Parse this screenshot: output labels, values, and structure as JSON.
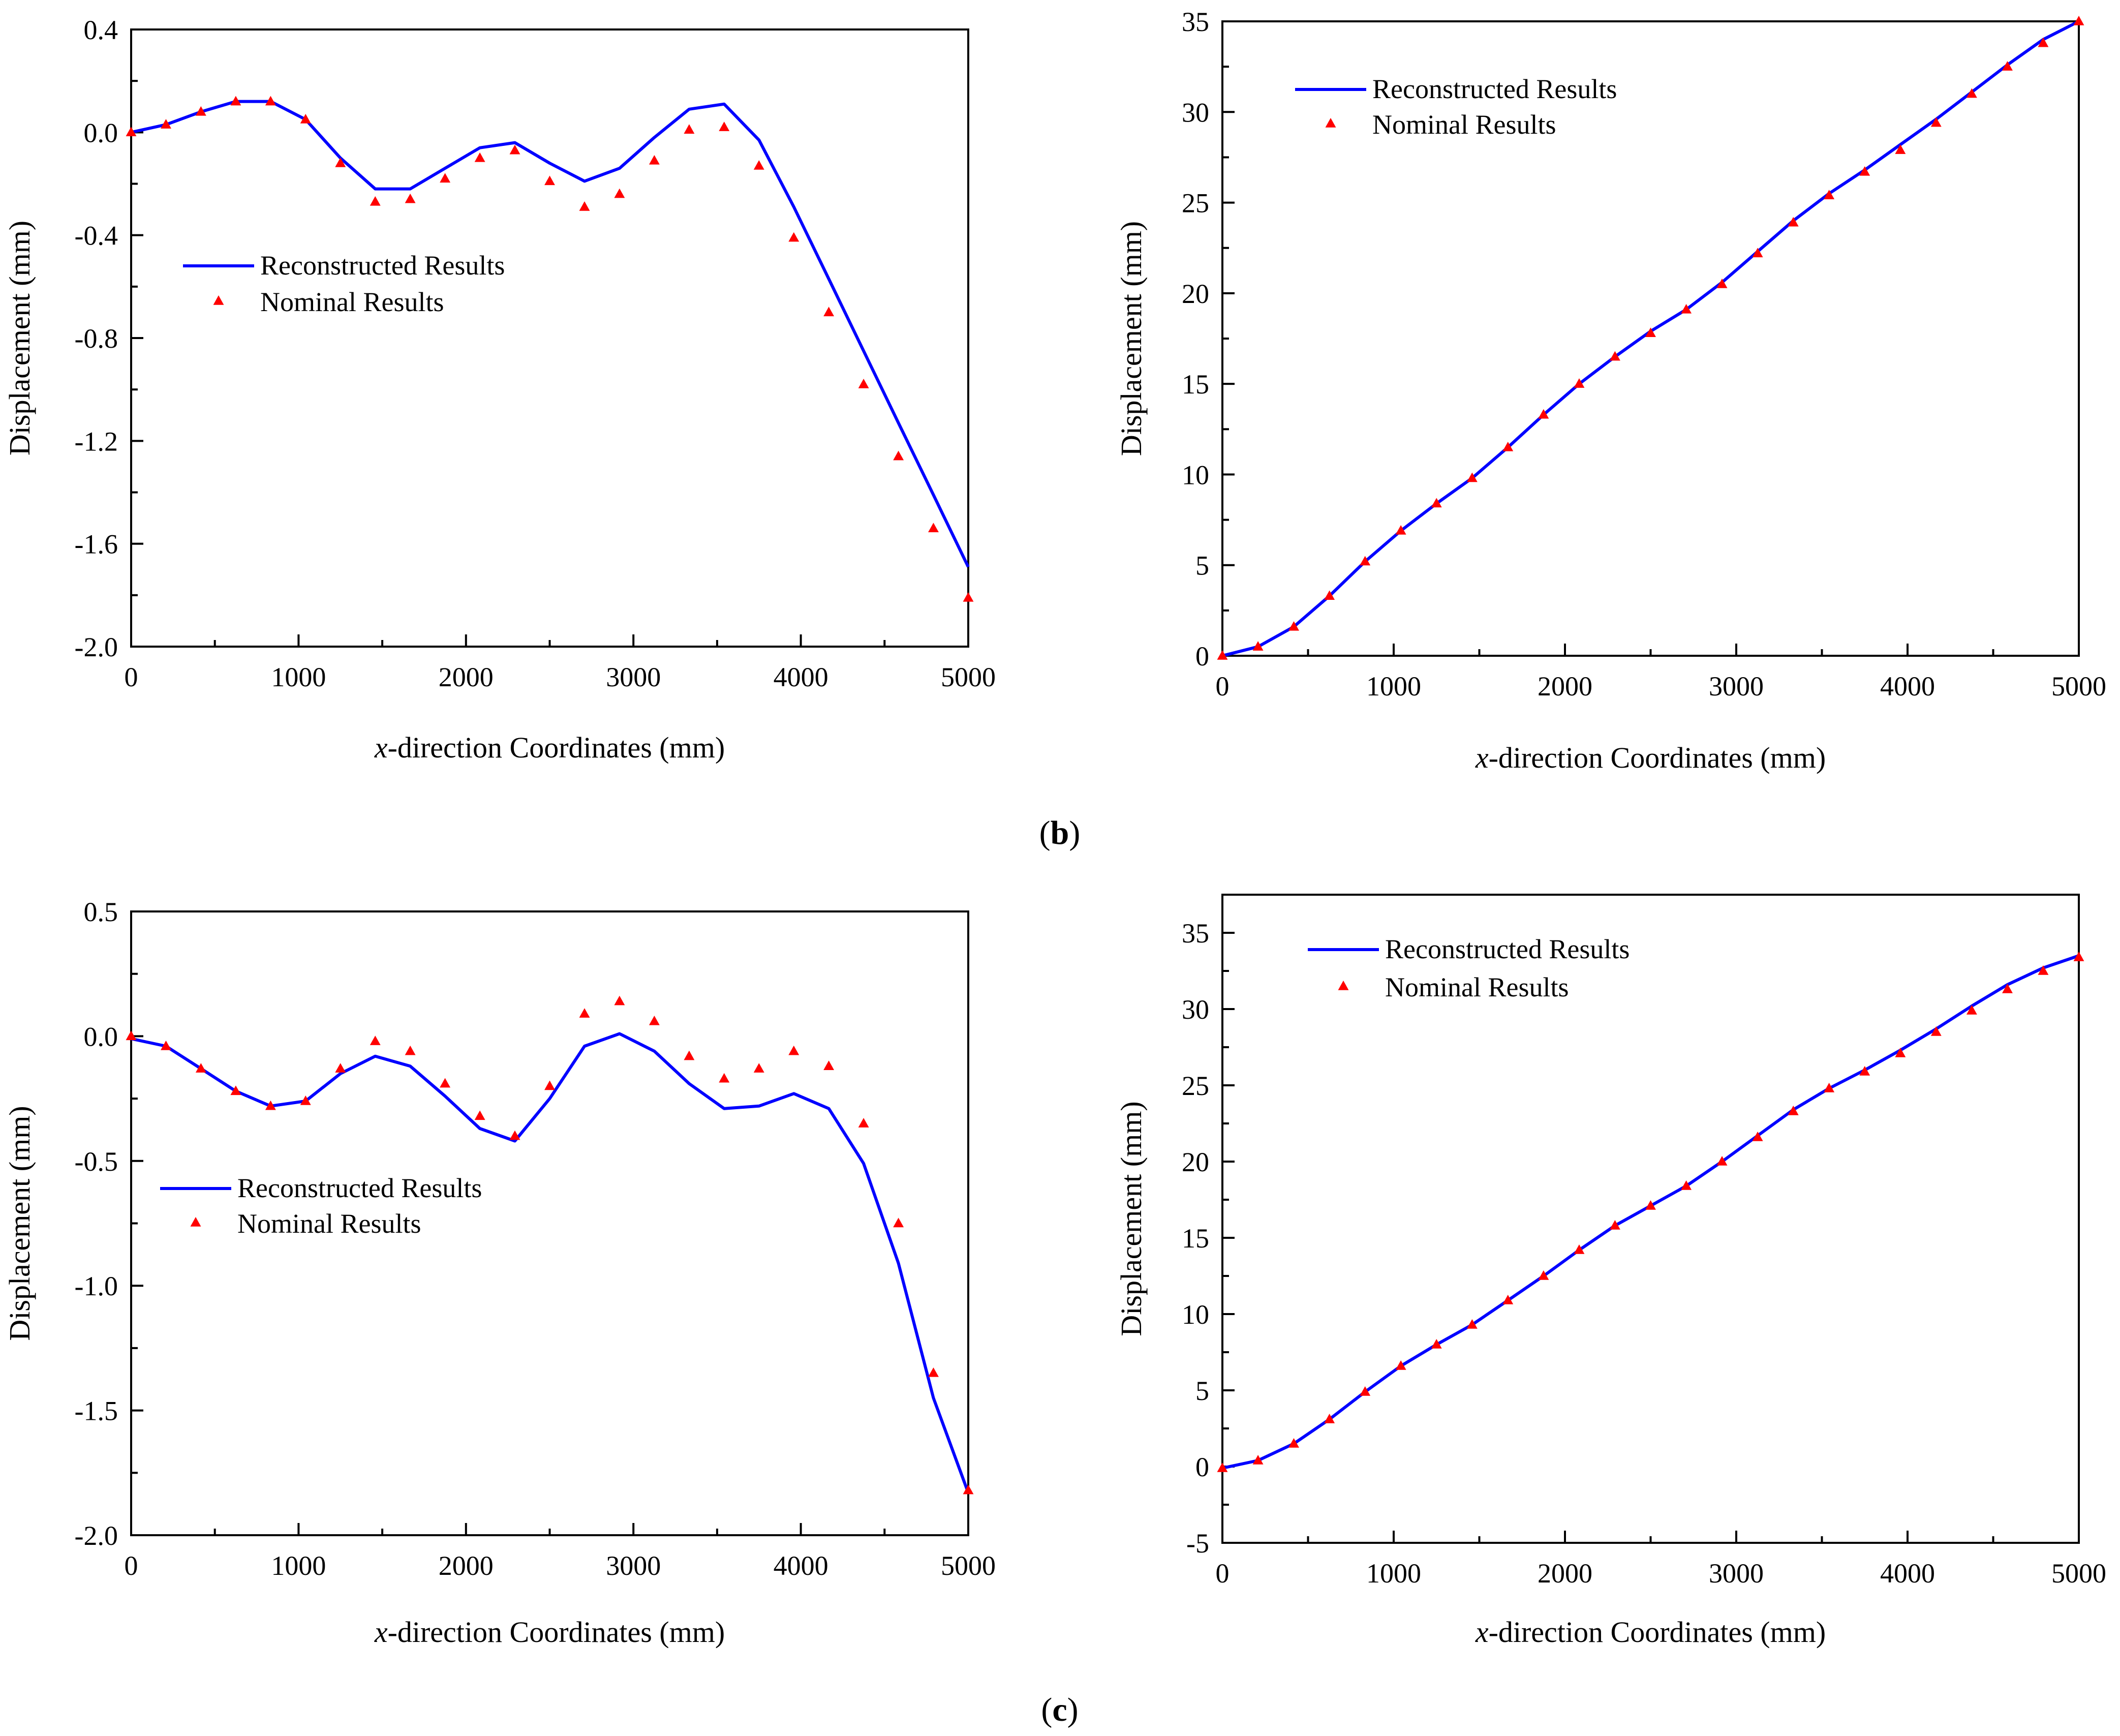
{
  "figure": {
    "captions": [
      {
        "open": "(",
        "letter": "b",
        "close": ")"
      },
      {
        "open": "(",
        "letter": "c",
        "close": ")"
      }
    ]
  },
  "chart_data": [
    {
      "type": "line",
      "panel": "top-left",
      "xlabel_italic": "x",
      "xlabel_rest": "-direction Coordinates (mm)",
      "ylabel": "Displacement (mm)",
      "xlim": [
        0,
        5000
      ],
      "ylim": [
        -2.0,
        0.4
      ],
      "xticks": [
        0,
        1000,
        2000,
        3000,
        4000,
        5000
      ],
      "xtick_labels": [
        "0",
        "1000",
        "2000",
        "3000",
        "4000",
        "5000"
      ],
      "yticks": [
        -2.0,
        -1.6,
        -1.2,
        -0.8,
        -0.4,
        0.0,
        0.4
      ],
      "ytick_labels": [
        "-2.0",
        "-1.6",
        "-1.2",
        "-0.8",
        "-0.4",
        "0.0",
        "0.4"
      ],
      "legend_position": "left-middle",
      "series": [
        {
          "name": "Reconstructed Results",
          "kind": "line",
          "color": "#0000ff",
          "x": [
            0,
            208,
            417,
            625,
            833,
            1042,
            1250,
            1458,
            1667,
            1875,
            2083,
            2292,
            2500,
            2708,
            2917,
            3125,
            3333,
            3542,
            3750,
            3958,
            4167,
            4375,
            4583,
            4792,
            5000
          ],
          "y": [
            0.0,
            0.03,
            0.08,
            0.12,
            0.12,
            0.05,
            -0.1,
            -0.22,
            -0.22,
            -0.14,
            -0.06,
            -0.04,
            -0.12,
            -0.19,
            -0.14,
            -0.02,
            0.09,
            0.11,
            -0.03,
            -0.29,
            -0.57,
            -0.85,
            -1.13,
            -1.41,
            -1.69
          ]
        },
        {
          "name": "Nominal Results",
          "kind": "marker",
          "color": "#ff0000",
          "x": [
            0,
            208,
            417,
            625,
            833,
            1042,
            1250,
            1458,
            1667,
            1875,
            2083,
            2292,
            2500,
            2708,
            2917,
            3125,
            3333,
            3542,
            3750,
            3958,
            4167,
            4375,
            4583,
            4792,
            5000
          ],
          "y": [
            0.0,
            0.03,
            0.08,
            0.12,
            0.12,
            0.05,
            -0.12,
            -0.27,
            -0.26,
            -0.18,
            -0.1,
            -0.07,
            -0.19,
            -0.29,
            -0.24,
            -0.11,
            0.01,
            0.02,
            -0.13,
            -0.41,
            -0.7,
            -0.98,
            -1.26,
            -1.54,
            -1.81
          ]
        }
      ]
    },
    {
      "type": "line",
      "panel": "top-right",
      "xlabel_italic": "x",
      "xlabel_rest": "-direction Coordinates (mm)",
      "ylabel": "Displacement (mm)",
      "xlim": [
        0,
        5000
      ],
      "ylim": [
        0,
        35
      ],
      "xticks": [
        0,
        1000,
        2000,
        3000,
        4000,
        5000
      ],
      "xtick_labels": [
        "0",
        "1000",
        "2000",
        "3000",
        "4000",
        "5000"
      ],
      "yticks": [
        0,
        5,
        10,
        15,
        20,
        25,
        30,
        35
      ],
      "ytick_labels": [
        "0",
        "5",
        "10",
        "15",
        "20",
        "25",
        "30",
        "35"
      ],
      "legend_position": "top-left",
      "series": [
        {
          "name": "Reconstructed Results",
          "kind": "line",
          "color": "#0000ff",
          "x": [
            0,
            208,
            417,
            625,
            833,
            1042,
            1250,
            1458,
            1667,
            1875,
            2083,
            2292,
            2500,
            2708,
            2917,
            3125,
            3333,
            3542,
            3750,
            3958,
            4167,
            4375,
            4583,
            4792,
            5000
          ],
          "y": [
            0.0,
            0.5,
            1.6,
            3.3,
            5.2,
            6.9,
            8.4,
            9.8,
            11.5,
            13.3,
            15.0,
            16.5,
            17.9,
            19.1,
            20.6,
            22.3,
            24.0,
            25.5,
            26.8,
            28.2,
            29.6,
            31.1,
            32.6,
            34.0,
            35.0
          ]
        },
        {
          "name": "Nominal Results",
          "kind": "marker",
          "color": "#ff0000",
          "x": [
            0,
            208,
            417,
            625,
            833,
            1042,
            1250,
            1458,
            1667,
            1875,
            2083,
            2292,
            2500,
            2708,
            2917,
            3125,
            3333,
            3542,
            3750,
            3958,
            4167,
            4375,
            4583,
            4792,
            5000
          ],
          "y": [
            0.0,
            0.5,
            1.6,
            3.3,
            5.2,
            6.9,
            8.4,
            9.8,
            11.5,
            13.3,
            15.0,
            16.5,
            17.8,
            19.1,
            20.5,
            22.2,
            23.9,
            25.4,
            26.7,
            27.9,
            29.4,
            31.0,
            32.5,
            33.8,
            35.0
          ]
        }
      ]
    },
    {
      "type": "line",
      "panel": "bottom-left",
      "xlabel_italic": "x",
      "xlabel_rest": "-direction Coordinates (mm)",
      "ylabel": "Displacement (mm)",
      "xlim": [
        0,
        5000
      ],
      "ylim": [
        -2.0,
        0.5
      ],
      "xticks": [
        0,
        1000,
        2000,
        3000,
        4000,
        5000
      ],
      "xtick_labels": [
        "0",
        "1000",
        "2000",
        "3000",
        "4000",
        "5000"
      ],
      "yticks": [
        -2.0,
        -1.5,
        -1.0,
        -0.5,
        0.0,
        0.5
      ],
      "ytick_labels": [
        "-2.0",
        "-1.5",
        "-1.0",
        "-0.5",
        "0.0",
        "0.5"
      ],
      "legend_position": "left-middle",
      "series": [
        {
          "name": "Reconstructed Results",
          "kind": "line",
          "color": "#0000ff",
          "x": [
            0,
            208,
            417,
            625,
            833,
            1042,
            1250,
            1458,
            1667,
            1875,
            2083,
            2292,
            2500,
            2708,
            2917,
            3125,
            3333,
            3542,
            3750,
            3958,
            4167,
            4375,
            4583,
            4792,
            5000
          ],
          "y": [
            -0.01,
            -0.04,
            -0.13,
            -0.22,
            -0.28,
            -0.26,
            -0.15,
            -0.08,
            -0.12,
            -0.24,
            -0.37,
            -0.42,
            -0.25,
            -0.04,
            0.01,
            -0.06,
            -0.19,
            -0.29,
            -0.28,
            -0.23,
            -0.29,
            -0.51,
            -0.91,
            -1.45,
            -1.83
          ]
        },
        {
          "name": "Nominal Results",
          "kind": "marker",
          "color": "#ff0000",
          "x": [
            0,
            208,
            417,
            625,
            833,
            1042,
            1250,
            1458,
            1667,
            1875,
            2083,
            2292,
            2500,
            2708,
            2917,
            3125,
            3333,
            3542,
            3750,
            3958,
            4167,
            4375,
            4583,
            4792,
            5000
          ],
          "y": [
            0.0,
            -0.04,
            -0.13,
            -0.22,
            -0.28,
            -0.26,
            -0.13,
            -0.02,
            -0.06,
            -0.19,
            -0.32,
            -0.4,
            -0.2,
            0.09,
            0.14,
            0.06,
            -0.08,
            -0.17,
            -0.13,
            -0.06,
            -0.12,
            -0.35,
            -0.75,
            -1.35,
            -1.82
          ]
        }
      ]
    },
    {
      "type": "line",
      "panel": "bottom-right",
      "xlabel_italic": "x",
      "xlabel_rest": "-direction Coordinates (mm)",
      "ylabel": "Displacement (mm)",
      "xlim": [
        0,
        5000
      ],
      "ylim": [
        -5,
        37.5
      ],
      "xticks": [
        0,
        1000,
        2000,
        3000,
        4000,
        5000
      ],
      "xtick_labels": [
        "0",
        "1000",
        "2000",
        "3000",
        "4000",
        "5000"
      ],
      "yticks": [
        -5,
        0,
        5,
        10,
        15,
        20,
        25,
        30,
        35
      ],
      "ytick_labels": [
        "-5",
        "0",
        "5",
        "10",
        "15",
        "20",
        "25",
        "30",
        "35"
      ],
      "legend_position": "top-left",
      "series": [
        {
          "name": "Reconstructed Results",
          "kind": "line",
          "color": "#0000ff",
          "x": [
            0,
            208,
            417,
            625,
            833,
            1042,
            1250,
            1458,
            1667,
            1875,
            2083,
            2292,
            2500,
            2708,
            2917,
            3125,
            3333,
            3542,
            3750,
            3958,
            4167,
            4375,
            4583,
            4792,
            5000
          ],
          "y": [
            -0.1,
            0.4,
            1.5,
            3.1,
            4.9,
            6.6,
            8.0,
            9.3,
            10.9,
            12.5,
            14.2,
            15.8,
            17.1,
            18.4,
            20.0,
            21.7,
            23.4,
            24.8,
            26.0,
            27.3,
            28.7,
            30.2,
            31.6,
            32.7,
            33.5
          ]
        },
        {
          "name": "Nominal Results",
          "kind": "marker",
          "color": "#ff0000",
          "x": [
            0,
            208,
            417,
            625,
            833,
            1042,
            1250,
            1458,
            1667,
            1875,
            2083,
            2292,
            2500,
            2708,
            2917,
            3125,
            3333,
            3542,
            3750,
            3958,
            4167,
            4375,
            4583,
            4792,
            5000
          ],
          "y": [
            -0.1,
            0.4,
            1.5,
            3.1,
            4.9,
            6.6,
            8.0,
            9.3,
            10.9,
            12.5,
            14.2,
            15.8,
            17.1,
            18.4,
            20.0,
            21.6,
            23.3,
            24.8,
            25.9,
            27.1,
            28.5,
            29.9,
            31.3,
            32.5,
            33.4
          ]
        }
      ]
    }
  ]
}
